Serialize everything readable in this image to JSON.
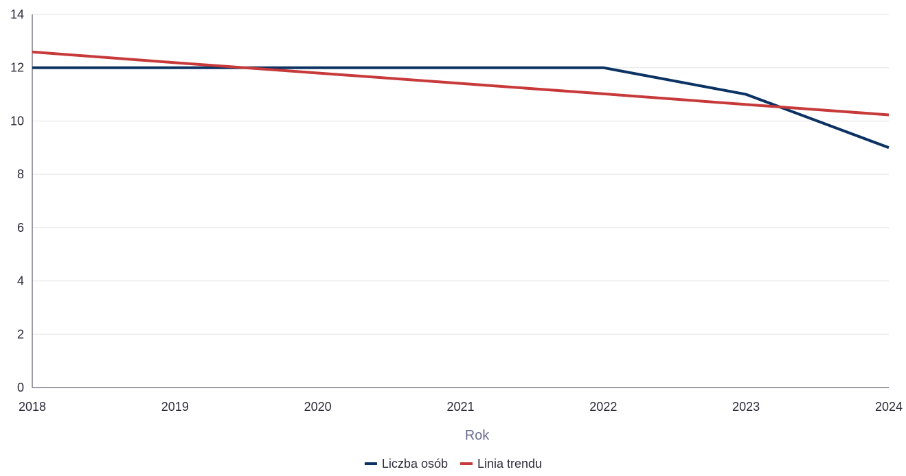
{
  "chart_data": {
    "type": "line",
    "title": "",
    "xlabel": "Rok",
    "ylabel": "",
    "x": [
      2018,
      2019,
      2020,
      2021,
      2022,
      2023,
      2024
    ],
    "xlim": [
      2018,
      2024
    ],
    "ylim": [
      0,
      14
    ],
    "yticks": [
      0,
      2,
      4,
      6,
      8,
      10,
      12,
      14
    ],
    "grid": true,
    "legend_position": "bottom-center",
    "series": [
      {
        "name": "Liczba osób",
        "color": "#0b3263",
        "values": [
          12,
          12,
          12,
          12,
          12,
          11,
          9
        ]
      },
      {
        "name": "Linia trendu",
        "color": "#c8393a",
        "values": [
          12.59,
          12.19,
          11.8,
          11.41,
          11.02,
          10.62,
          10.23
        ]
      }
    ]
  }
}
